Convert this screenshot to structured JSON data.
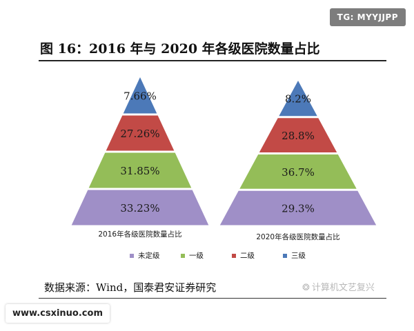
{
  "watermark_top": "TG: MYYJJPP",
  "figure_title": "图 16：2016 年与 2020 年各级医院数量占比",
  "source": "数据来源：Wind，国泰君安证券研究",
  "wechat_watermark": "计算机文艺复兴",
  "watermark_bottom": "www.csxinuo.com",
  "colors": {
    "unrated": "#9f8fc7",
    "level1": "#94bd58",
    "level2": "#c24a46",
    "level3": "#4c79b8"
  },
  "chart_data": {
    "type": "pyramid",
    "legend_position": "bottom",
    "legend": [
      {
        "label": "未定级",
        "color": "#9f8fc7"
      },
      {
        "label": "一级",
        "color": "#94bd58"
      },
      {
        "label": "二级",
        "color": "#c24a46"
      },
      {
        "label": "三级",
        "color": "#4c79b8"
      }
    ],
    "charts": [
      {
        "title": "2016年各级医院数量占比",
        "segments_top_to_bottom": [
          {
            "category": "三级",
            "label": "7.66%",
            "value": 7.66
          },
          {
            "category": "二级",
            "label": "27.26%",
            "value": 27.26
          },
          {
            "category": "一级",
            "label": "31.85%",
            "value": 31.85
          },
          {
            "category": "未定级",
            "label": "33.23%",
            "value": 33.23
          }
        ]
      },
      {
        "title": "2020年各级医院数量占比",
        "segments_top_to_bottom": [
          {
            "category": "三级",
            "label": "8.2%",
            "value": 8.2
          },
          {
            "category": "二级",
            "label": "28.8%",
            "value": 28.8
          },
          {
            "category": "一级",
            "label": "36.7%",
            "value": 36.7
          },
          {
            "category": "未定级",
            "label": "29.3%",
            "value": 29.3
          }
        ]
      }
    ]
  }
}
